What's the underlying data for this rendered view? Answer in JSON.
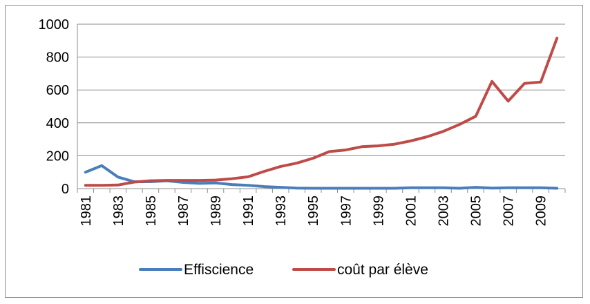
{
  "chart_data": {
    "type": "line",
    "title": "",
    "xlabel": "",
    "ylabel": "",
    "ylim": [
      0,
      1000
    ],
    "yticks": [
      0,
      200,
      400,
      600,
      800,
      1000
    ],
    "x": [
      1981,
      1982,
      1983,
      1984,
      1985,
      1986,
      1987,
      1988,
      1989,
      1990,
      1991,
      1992,
      1993,
      1994,
      1995,
      1996,
      1997,
      1998,
      1999,
      2000,
      2001,
      2002,
      2003,
      2004,
      2005,
      2006,
      2007,
      2008,
      2009,
      2010
    ],
    "xtick_labels": [
      "1981",
      "1983",
      "1985",
      "1987",
      "1989",
      "1991",
      "1993",
      "1995",
      "1997",
      "1999",
      "2001",
      "2003",
      "2005",
      "2007",
      "2009"
    ],
    "grid": "horizontal",
    "legend_position": "bottom",
    "series": [
      {
        "name": "Effiscience",
        "color": "#4a7ebb",
        "values": [
          100,
          140,
          70,
          42,
          42,
          48,
          38,
          32,
          35,
          25,
          20,
          12,
          8,
          3,
          2,
          2,
          2,
          2,
          2,
          2,
          5,
          5,
          5,
          2,
          8,
          3,
          5,
          5,
          5,
          2
        ]
      },
      {
        "name": "coût par élève",
        "color": "#be4b48",
        "values": [
          20,
          20,
          22,
          40,
          48,
          50,
          50,
          50,
          52,
          60,
          72,
          105,
          135,
          155,
          185,
          225,
          235,
          255,
          260,
          270,
          290,
          315,
          348,
          390,
          440,
          652,
          532,
          640,
          648,
          915
        ]
      }
    ]
  }
}
